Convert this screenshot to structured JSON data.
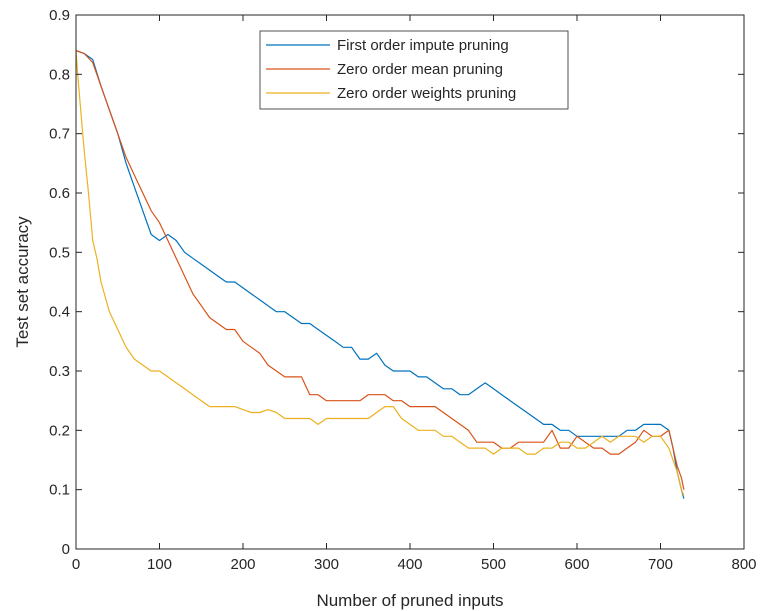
{
  "chart_data": {
    "type": "line",
    "title": "",
    "xlabel": "Number of pruned inputs",
    "ylabel": "Test set accuracy",
    "xlim": [
      0,
      800
    ],
    "ylim": [
      0,
      0.9
    ],
    "xticks": [
      "0",
      "100",
      "200",
      "300",
      "400",
      "500",
      "600",
      "700",
      "800"
    ],
    "yticks": [
      "0",
      "0.1",
      "0.2",
      "0.3",
      "0.4",
      "0.5",
      "0.6",
      "0.7",
      "0.8",
      "0.9"
    ],
    "grid": false,
    "legend_position": "top-center",
    "series": [
      {
        "name": "First order impute pruning",
        "color": "#0072bd",
        "x": [
          0,
          10,
          20,
          30,
          40,
          50,
          60,
          70,
          80,
          90,
          100,
          110,
          120,
          130,
          140,
          150,
          160,
          170,
          180,
          190,
          200,
          210,
          220,
          230,
          240,
          250,
          260,
          270,
          280,
          290,
          300,
          310,
          320,
          330,
          340,
          350,
          360,
          370,
          380,
          390,
          400,
          410,
          420,
          430,
          440,
          450,
          460,
          470,
          480,
          490,
          500,
          510,
          520,
          530,
          540,
          550,
          560,
          570,
          580,
          590,
          600,
          610,
          620,
          630,
          640,
          650,
          660,
          670,
          680,
          690,
          700,
          710,
          715,
          720,
          725,
          728
        ],
        "y": [
          0.84,
          0.835,
          0.825,
          0.78,
          0.74,
          0.7,
          0.65,
          0.61,
          0.57,
          0.53,
          0.52,
          0.53,
          0.52,
          0.5,
          0.49,
          0.48,
          0.47,
          0.46,
          0.45,
          0.45,
          0.44,
          0.43,
          0.42,
          0.41,
          0.4,
          0.4,
          0.39,
          0.38,
          0.38,
          0.37,
          0.36,
          0.35,
          0.34,
          0.34,
          0.32,
          0.32,
          0.33,
          0.31,
          0.3,
          0.3,
          0.3,
          0.29,
          0.29,
          0.28,
          0.27,
          0.27,
          0.26,
          0.26,
          0.27,
          0.28,
          0.27,
          0.26,
          0.25,
          0.24,
          0.23,
          0.22,
          0.21,
          0.21,
          0.2,
          0.2,
          0.19,
          0.19,
          0.19,
          0.19,
          0.19,
          0.19,
          0.2,
          0.2,
          0.21,
          0.21,
          0.21,
          0.2,
          0.17,
          0.13,
          0.1,
          0.085
        ]
      },
      {
        "name": "Zero order mean pruning",
        "color": "#d95319",
        "x": [
          0,
          10,
          20,
          30,
          40,
          50,
          60,
          70,
          80,
          90,
          100,
          110,
          120,
          130,
          140,
          150,
          160,
          170,
          180,
          190,
          200,
          210,
          220,
          230,
          240,
          250,
          260,
          270,
          280,
          290,
          300,
          310,
          320,
          330,
          340,
          350,
          360,
          370,
          380,
          390,
          400,
          410,
          420,
          430,
          440,
          450,
          460,
          470,
          480,
          490,
          500,
          510,
          520,
          530,
          540,
          550,
          560,
          570,
          580,
          590,
          600,
          610,
          620,
          630,
          640,
          650,
          660,
          670,
          680,
          690,
          700,
          710,
          715,
          720,
          725,
          728
        ],
        "y": [
          0.84,
          0.835,
          0.82,
          0.78,
          0.74,
          0.7,
          0.66,
          0.63,
          0.6,
          0.57,
          0.55,
          0.52,
          0.49,
          0.46,
          0.43,
          0.41,
          0.39,
          0.38,
          0.37,
          0.37,
          0.35,
          0.34,
          0.33,
          0.31,
          0.3,
          0.29,
          0.29,
          0.29,
          0.26,
          0.26,
          0.25,
          0.25,
          0.25,
          0.25,
          0.25,
          0.26,
          0.26,
          0.26,
          0.25,
          0.25,
          0.24,
          0.24,
          0.24,
          0.24,
          0.23,
          0.22,
          0.21,
          0.2,
          0.18,
          0.18,
          0.18,
          0.17,
          0.17,
          0.18,
          0.18,
          0.18,
          0.18,
          0.2,
          0.17,
          0.17,
          0.19,
          0.18,
          0.17,
          0.17,
          0.16,
          0.16,
          0.17,
          0.18,
          0.2,
          0.19,
          0.19,
          0.2,
          0.17,
          0.14,
          0.12,
          0.1
        ]
      },
      {
        "name": "Zero order weights pruning",
        "color": "#edb120",
        "x": [
          0,
          2,
          5,
          8,
          10,
          15,
          20,
          25,
          30,
          40,
          50,
          60,
          70,
          80,
          90,
          100,
          110,
          120,
          130,
          140,
          150,
          160,
          170,
          180,
          190,
          200,
          210,
          220,
          230,
          240,
          250,
          260,
          270,
          280,
          290,
          300,
          310,
          320,
          330,
          340,
          350,
          360,
          370,
          380,
          390,
          400,
          410,
          420,
          430,
          440,
          450,
          460,
          470,
          480,
          490,
          500,
          510,
          520,
          530,
          540,
          550,
          560,
          570,
          580,
          590,
          600,
          610,
          620,
          630,
          640,
          650,
          660,
          670,
          680,
          690,
          700,
          710,
          715,
          720,
          725,
          728
        ],
        "y": [
          0.84,
          0.8,
          0.75,
          0.7,
          0.67,
          0.6,
          0.52,
          0.49,
          0.45,
          0.4,
          0.37,
          0.34,
          0.32,
          0.31,
          0.3,
          0.3,
          0.29,
          0.28,
          0.27,
          0.26,
          0.25,
          0.24,
          0.24,
          0.24,
          0.24,
          0.235,
          0.23,
          0.23,
          0.235,
          0.23,
          0.22,
          0.22,
          0.22,
          0.22,
          0.21,
          0.22,
          0.22,
          0.22,
          0.22,
          0.22,
          0.22,
          0.23,
          0.24,
          0.24,
          0.22,
          0.21,
          0.2,
          0.2,
          0.2,
          0.19,
          0.19,
          0.18,
          0.17,
          0.17,
          0.17,
          0.16,
          0.17,
          0.17,
          0.17,
          0.16,
          0.16,
          0.17,
          0.17,
          0.18,
          0.18,
          0.17,
          0.17,
          0.18,
          0.19,
          0.18,
          0.19,
          0.19,
          0.19,
          0.18,
          0.19,
          0.19,
          0.17,
          0.15,
          0.13,
          0.1,
          0.09
        ]
      }
    ]
  }
}
